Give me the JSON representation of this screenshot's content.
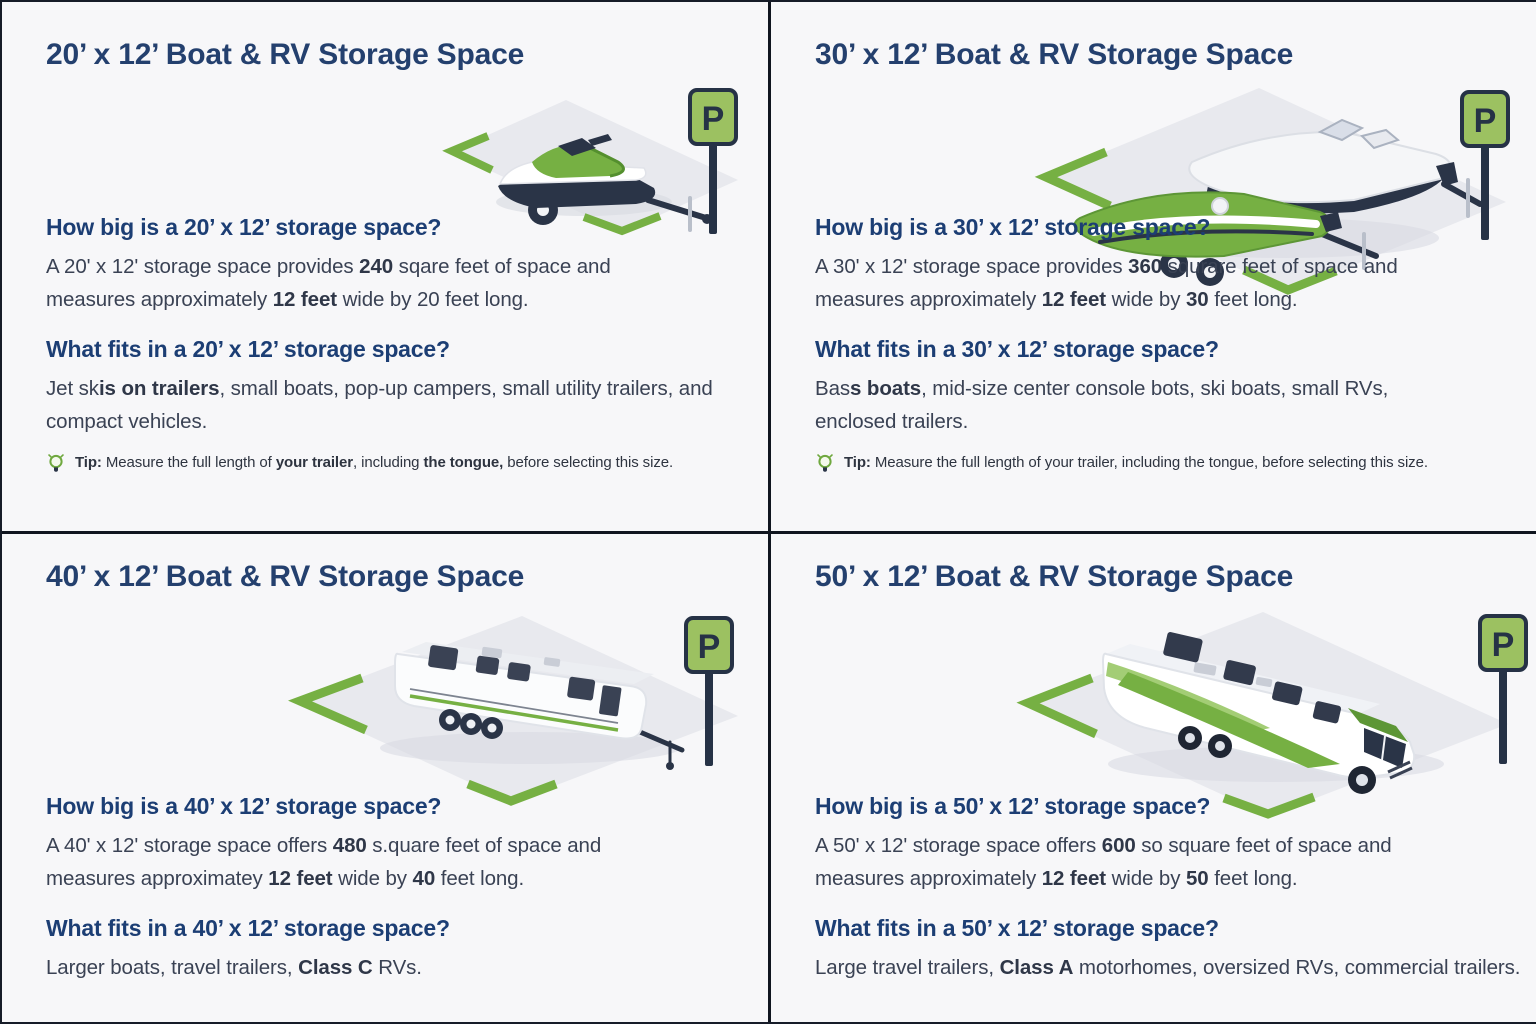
{
  "page": {
    "background": "#f7f7f9",
    "divider_color": "#10151f",
    "accent_green": "#76b043",
    "sign_green": "#9cc161",
    "vehicle_navy": "#2a3447",
    "title_color": "#24406e",
    "heading_color": "#1c3e74",
    "body_color": "#3a4254"
  },
  "panels": [
    {
      "title": "20’ x 12’ Boat & RV Storage Space",
      "illustration": "jet-ski-on-trailer",
      "sign_letter": "P",
      "how_big": {
        "heading": "How big is a 20’ x 12’ storage space?",
        "body": [
          {
            "t": "A 20' x 12' storage space provides "
          },
          {
            "t": "240",
            "b": true
          },
          {
            "t": " sqare feet of space and measures approximately "
          },
          {
            "t": "12 feet",
            "b": true
          },
          {
            "t": " wide by 20 feet long."
          }
        ]
      },
      "what_fits": {
        "heading": "What fits in a 20’ x 12’ storage space?",
        "body": [
          {
            "t": "Jet sk"
          },
          {
            "t": "is on trailers",
            "b": true
          },
          {
            "t": ", small boats, pop-up campers, small utility trailers, and compact vehicles."
          }
        ]
      },
      "tip": [
        {
          "t": "Tip:",
          "b": true
        },
        {
          "t": " Measure the full length of "
        },
        {
          "t": "your trailer",
          "b": true
        },
        {
          "t": ", including "
        },
        {
          "t": "the tongue,",
          "b": true
        },
        {
          "t": " before selecting this size."
        }
      ]
    },
    {
      "title": "30’ x 12’ Boat & RV Storage Space",
      "illustration": "two-boats-on-trailers",
      "sign_letter": "P",
      "how_big": {
        "heading": "How big is a 30’ x 12’ storage space?",
        "body": [
          {
            "t": "A 30' x 12' storage space provides "
          },
          {
            "t": "360",
            "b": true
          },
          {
            "t": " squrare feet of space and measures approximately "
          },
          {
            "t": "12 feet",
            "b": true
          },
          {
            "t": " wide by "
          },
          {
            "t": "30",
            "b": true
          },
          {
            "t": " feet long."
          }
        ]
      },
      "what_fits": {
        "heading": "What fits in a 30’ x 12’ storage space?",
        "body": [
          {
            "t": "Bas"
          },
          {
            "t": "s boats",
            "b": true
          },
          {
            "t": ", mid-size center console bots, ski boats, small RVs, enclosed trailers."
          }
        ]
      },
      "tip": [
        {
          "t": "Tip:",
          "b": true
        },
        {
          "t": " Measure the full length of your trailer, including the tongue, before selecting this size."
        }
      ]
    },
    {
      "title": "40’ x 12’ Boat & RV Storage Space",
      "illustration": "travel-trailer",
      "sign_letter": "P",
      "how_big": {
        "heading": "How big is a 40’ x 12’ storage space?",
        "body": [
          {
            "t": "A 40' x 12' storage space offers "
          },
          {
            "t": "480",
            "b": true
          },
          {
            "t": " s.quare feet of space and measures approximatey "
          },
          {
            "t": "12 feet",
            "b": true
          },
          {
            "t": " wide by "
          },
          {
            "t": "40",
            "b": true
          },
          {
            "t": " feet long."
          }
        ]
      },
      "what_fits": {
        "heading": "What fits in a 40’ x 12’ storage space?",
        "body": [
          {
            "t": "Larger boats, travel trailers, "
          },
          {
            "t": "Class C",
            "b": true
          },
          {
            "t": " RVs."
          }
        ]
      },
      "tip": null
    },
    {
      "title": "50’ x 12’ Boat & RV Storage Space",
      "illustration": "class-a-motorhome",
      "sign_letter": "P",
      "how_big": {
        "heading": "How big is a 50’ x 12’ storage space?",
        "body": [
          {
            "t": "A 50' x 12' storage space offers "
          },
          {
            "t": "600",
            "b": true
          },
          {
            "t": " so square feet of space and measures approximately "
          },
          {
            "t": "12 feet",
            "b": true
          },
          {
            "t": " wide by "
          },
          {
            "t": "50",
            "b": true
          },
          {
            "t": " feet long."
          }
        ]
      },
      "what_fits": {
        "heading": "What fits in a 50’ x 12’ storage space?",
        "body": [
          {
            "t": "Large travel trailers, "
          },
          {
            "t": "Class A",
            "b": true
          },
          {
            "t": " motorhomes, oversized RVs, commercial trailers."
          }
        ]
      },
      "tip": null
    }
  ]
}
